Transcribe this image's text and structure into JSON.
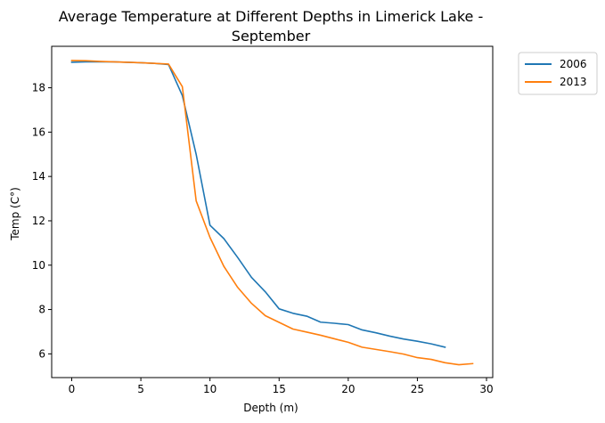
{
  "chart_data": {
    "type": "line",
    "title_line1": "Average Temperature at Different Depths in Limerick Lake -",
    "title_line2": "September",
    "xlabel": "Depth (m)",
    "ylabel": "Temp (C°)",
    "xlim": [
      -1.45,
      30.45
    ],
    "ylim": [
      4.93,
      19.87
    ],
    "xticks": [
      0,
      5,
      10,
      15,
      20,
      25,
      30
    ],
    "yticks": [
      6,
      8,
      10,
      12,
      14,
      16,
      18
    ],
    "grid": false,
    "legend_position": "outside-top-right",
    "series": [
      {
        "name": "2006",
        "color": "#1f77b4",
        "x": [
          0,
          1,
          2,
          3,
          4,
          5,
          6,
          7,
          8,
          9,
          10,
          11,
          12,
          13,
          14,
          15,
          16,
          17,
          18,
          19,
          20,
          21,
          22,
          23,
          24,
          25,
          26,
          27
        ],
        "y": [
          19.15,
          19.17,
          19.17,
          19.17,
          19.15,
          19.13,
          19.1,
          19.05,
          17.65,
          15.0,
          11.8,
          11.2,
          10.35,
          9.45,
          8.8,
          8.03,
          7.83,
          7.7,
          7.43,
          7.38,
          7.32,
          7.08,
          6.95,
          6.8,
          6.67,
          6.57,
          6.45,
          6.3
        ]
      },
      {
        "name": "2013",
        "color": "#ff7f0e",
        "x": [
          0,
          1,
          2,
          3,
          4,
          5,
          6,
          7,
          8,
          9,
          10,
          11,
          12,
          13,
          14,
          15,
          16,
          17,
          18,
          19,
          20,
          21,
          22,
          23,
          24,
          25,
          26,
          27,
          28,
          29
        ],
        "y": [
          19.23,
          19.22,
          19.19,
          19.17,
          19.15,
          19.13,
          19.1,
          19.07,
          18.05,
          12.9,
          11.25,
          9.95,
          9.0,
          8.28,
          7.72,
          7.42,
          7.12,
          6.98,
          6.84,
          6.68,
          6.52,
          6.3,
          6.2,
          6.1,
          5.99,
          5.83,
          5.75,
          5.6,
          5.51,
          5.56
        ]
      }
    ]
  }
}
